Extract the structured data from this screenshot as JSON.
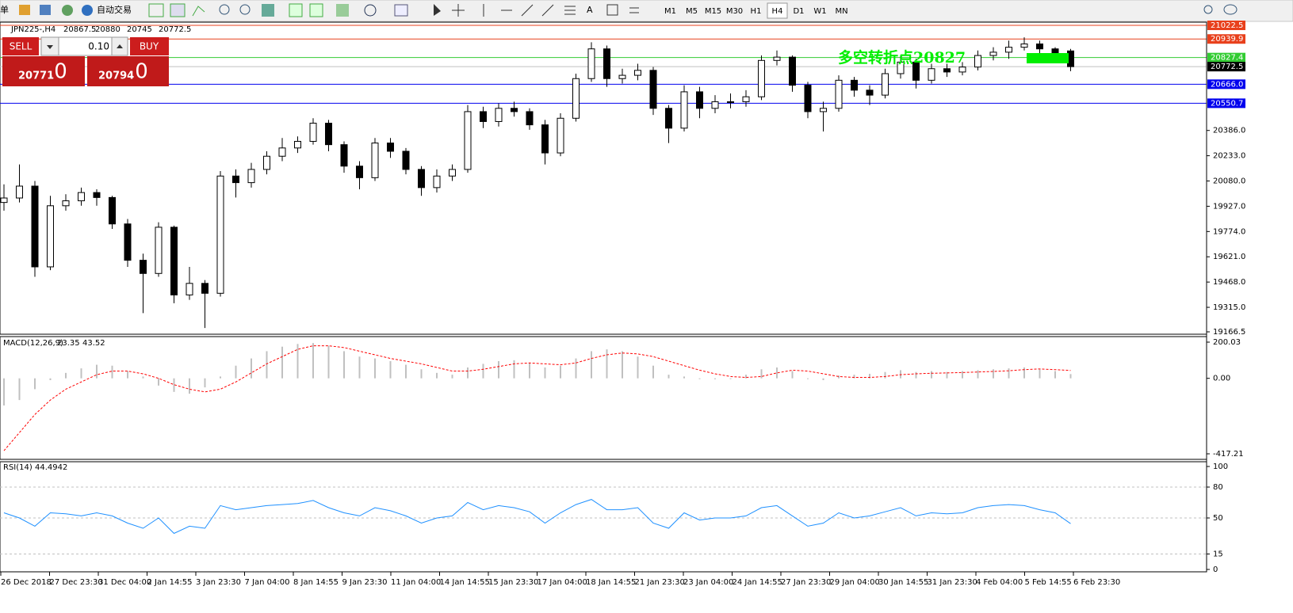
{
  "toolbar": {
    "cut": "单",
    "autotrade": "自动交易",
    "text_tool": "A",
    "timeframes": [
      "M1",
      "M5",
      "M15",
      "M30",
      "H1",
      "H4",
      "D1",
      "W1",
      "MN"
    ],
    "active": "H4"
  },
  "trade_panel": {
    "sell": "SELL",
    "buy": "BUY",
    "lots": "0.10",
    "bid_big": "20771",
    "bid_small": ".0",
    "ask_big": "20794",
    "ask_small": ".0"
  },
  "time_axis": {
    "labels": [
      "26 Dec 2018",
      "27 Dec 23:30",
      "31 Dec 04:00",
      "2 Jan 14:55",
      "3 Jan 23:30",
      "7 Jan 04:00",
      "8 Jan 14:55",
      "9 Jan 23:30",
      "11 Jan 04:00",
      "14 Jan 14:55",
      "15 Jan 23:30",
      "17 Jan 04:00",
      "18 Jan 14:55",
      "21 Jan 23:30",
      "23 Jan 04:00",
      "24 Jan 14:55",
      "27 Jan 23:30",
      "29 Jan 04:00",
      "30 Jan 14:55",
      "31 Jan 23:30",
      "4 Feb 04:00",
      "5 Feb 14:55",
      "6 Feb 23:30"
    ]
  },
  "chart_data": [
    {
      "type": "candlestick",
      "symbol": "JPN225-,H4",
      "annotation": "多空转折点20827",
      "annotation_color": "#00ee00",
      "ylim": [
        19166.5,
        21022.5
      ],
      "yticks": [
        {
          "value": 20386,
          "label": "20386.0"
        },
        {
          "value": 20233,
          "label": "20233.0"
        },
        {
          "value": 20080,
          "label": "20080.0"
        },
        {
          "value": 19927,
          "label": "19927.0"
        },
        {
          "value": 19774,
          "label": "19774.0"
        },
        {
          "value": 19621,
          "label": "19621.0"
        },
        {
          "value": 19468,
          "label": "19468.0"
        },
        {
          "value": 19315,
          "label": "19315.0"
        },
        19166.5
      ],
      "levels": [
        {
          "value": 21022.5,
          "color": "#e8401c"
        },
        {
          "value": 20939.9,
          "color": "#e8401c"
        },
        {
          "value": 20827.4,
          "color": "#33cc33"
        },
        {
          "value": 20666,
          "label": "20666.0",
          "color": "#0000ee"
        },
        {
          "value": 20550.7,
          "color": "#0000ee"
        }
      ],
      "ohlc": [
        [
          19950,
          20060,
          19900,
          19977
        ],
        [
          19977,
          20180,
          19950,
          20049
        ],
        [
          20049,
          20080,
          19500,
          19560
        ],
        [
          19560,
          19990,
          19540,
          19930
        ],
        [
          19930,
          20000,
          19900,
          19960
        ],
        [
          19960,
          20040,
          19930,
          20010
        ],
        [
          20010,
          20030,
          19930,
          19980
        ],
        [
          19980,
          19990,
          19790,
          19820
        ],
        [
          19820,
          19850,
          19560,
          19600
        ],
        [
          19600,
          19640,
          19280,
          19520
        ],
        [
          19520,
          19830,
          19500,
          19800
        ],
        [
          19800,
          19810,
          19340,
          19390
        ],
        [
          19390,
          19560,
          19360,
          19460
        ],
        [
          19460,
          19480,
          19190,
          19400
        ],
        [
          19400,
          20140,
          19380,
          20110
        ],
        [
          20110,
          20150,
          19980,
          20070
        ],
        [
          20070,
          20190,
          20040,
          20150
        ],
        [
          20150,
          20260,
          20120,
          20230
        ],
        [
          20230,
          20340,
          20200,
          20280
        ],
        [
          20280,
          20350,
          20250,
          20320
        ],
        [
          20320,
          20460,
          20300,
          20430
        ],
        [
          20430,
          20450,
          20260,
          20300
        ],
        [
          20300,
          20320,
          20130,
          20170
        ],
        [
          20170,
          20200,
          20030,
          20100
        ],
        [
          20100,
          20340,
          20080,
          20310
        ],
        [
          20310,
          20340,
          20220,
          20260
        ],
        [
          20260,
          20280,
          20120,
          20150
        ],
        [
          20150,
          20170,
          19990,
          20040
        ],
        [
          20040,
          20150,
          20010,
          20110
        ],
        [
          20110,
          20180,
          20080,
          20150
        ],
        [
          20150,
          20540,
          20130,
          20500
        ],
        [
          20500,
          20530,
          20400,
          20440
        ],
        [
          20440,
          20550,
          20410,
          20520
        ],
        [
          20520,
          20560,
          20470,
          20500
        ],
        [
          20500,
          20520,
          20390,
          20420
        ],
        [
          20420,
          20450,
          20180,
          20250
        ],
        [
          20250,
          20490,
          20230,
          20460
        ],
        [
          20460,
          20730,
          20440,
          20700
        ],
        [
          20700,
          20920,
          20680,
          20880
        ],
        [
          20880,
          20900,
          20650,
          20700
        ],
        [
          20700,
          20760,
          20670,
          20720
        ],
        [
          20720,
          20790,
          20690,
          20750
        ],
        [
          20750,
          20770,
          20480,
          20520
        ],
        [
          20520,
          20540,
          20310,
          20400
        ],
        [
          20400,
          20660,
          20380,
          20620
        ],
        [
          20620,
          20650,
          20460,
          20520
        ],
        [
          20520,
          20600,
          20490,
          20560
        ],
        [
          20560,
          20610,
          20520,
          20560
        ],
        [
          20560,
          20630,
          20530,
          20590
        ],
        [
          20590,
          20840,
          20570,
          20810
        ],
        [
          20810,
          20870,
          20780,
          20830
        ],
        [
          20830,
          20840,
          20620,
          20660
        ],
        [
          20660,
          20680,
          20460,
          20500
        ],
        [
          20500,
          20560,
          20380,
          20520
        ],
        [
          20520,
          20720,
          20500,
          20690
        ],
        [
          20690,
          20710,
          20590,
          20630
        ],
        [
          20630,
          20660,
          20540,
          20600
        ],
        [
          20600,
          20760,
          20580,
          20730
        ],
        [
          20730,
          20840,
          20700,
          20800
        ],
        [
          20800,
          20820,
          20640,
          20690
        ],
        [
          20690,
          20790,
          20670,
          20760
        ],
        [
          20760,
          20790,
          20710,
          20740
        ],
        [
          20740,
          20800,
          20720,
          20770
        ],
        [
          20770,
          20870,
          20750,
          20840
        ],
        [
          20840,
          20890,
          20810,
          20860
        ],
        [
          20860,
          20930,
          20820,
          20890
        ],
        [
          20890,
          20950,
          20870,
          20910
        ],
        [
          20910,
          20930,
          20850,
          20880
        ],
        [
          20880,
          20890,
          20820,
          20850
        ],
        [
          20867.5,
          20880.0,
          20745.0,
          20772.5
        ]
      ]
    },
    {
      "type": "macd",
      "name": "MACD(12,26,9)",
      "hist_color": "#c0c0c0",
      "signal_color": "#ff0000",
      "ylim": [
        -417.21,
        200.03
      ],
      "yticks": [
        200.03,
        {
          "value": 0,
          "label": "0.00"
        },
        -417.21
      ],
      "histogram": [
        -150,
        -120,
        -60,
        -10,
        30,
        55,
        75,
        70,
        40,
        10,
        -40,
        -75,
        -85,
        -50,
        10,
        70,
        110,
        150,
        175,
        190,
        195,
        180,
        150,
        120,
        110,
        95,
        75,
        50,
        30,
        20,
        60,
        80,
        95,
        100,
        85,
        60,
        70,
        110,
        150,
        160,
        150,
        120,
        70,
        20,
        10,
        0,
        -5,
        0,
        20,
        50,
        60,
        40,
        0,
        -10,
        15,
        20,
        25,
        35,
        45,
        35,
        40,
        35,
        40,
        45,
        50,
        55,
        60,
        50,
        40,
        23.35
      ],
      "signal": [
        -400,
        -300,
        -200,
        -120,
        -60,
        -20,
        20,
        40,
        40,
        25,
        0,
        -35,
        -60,
        -75,
        -60,
        -20,
        30,
        80,
        120,
        160,
        180,
        180,
        170,
        150,
        130,
        110,
        95,
        80,
        60,
        40,
        40,
        50,
        65,
        80,
        85,
        80,
        75,
        85,
        110,
        130,
        140,
        135,
        120,
        95,
        70,
        45,
        25,
        10,
        5,
        10,
        30,
        45,
        40,
        25,
        10,
        5,
        5,
        10,
        20,
        25,
        28,
        30,
        32,
        35,
        38,
        42,
        48,
        52,
        48,
        43.52
      ]
    },
    {
      "type": "rsi",
      "name": "RSI(14)",
      "color": "#1e90ff",
      "ylim": [
        0,
        100
      ],
      "yticks": [
        100,
        80,
        50,
        15,
        0
      ],
      "levels": [
        80,
        50,
        15
      ],
      "values": [
        55,
        50,
        42,
        55,
        54,
        52,
        55,
        52,
        45,
        40,
        50,
        35,
        42,
        40,
        62,
        58,
        60,
        62,
        63,
        64,
        67,
        60,
        55,
        52,
        60,
        57,
        52,
        45,
        50,
        52,
        65,
        58,
        62,
        60,
        56,
        45,
        55,
        63,
        68,
        58,
        58,
        60,
        45,
        40,
        55,
        48,
        50,
        50,
        52,
        60,
        62,
        52,
        42,
        45,
        55,
        50,
        52,
        56,
        60,
        52,
        55,
        54,
        55,
        60,
        62,
        63,
        62,
        58,
        55,
        44.4942
      ]
    }
  ]
}
